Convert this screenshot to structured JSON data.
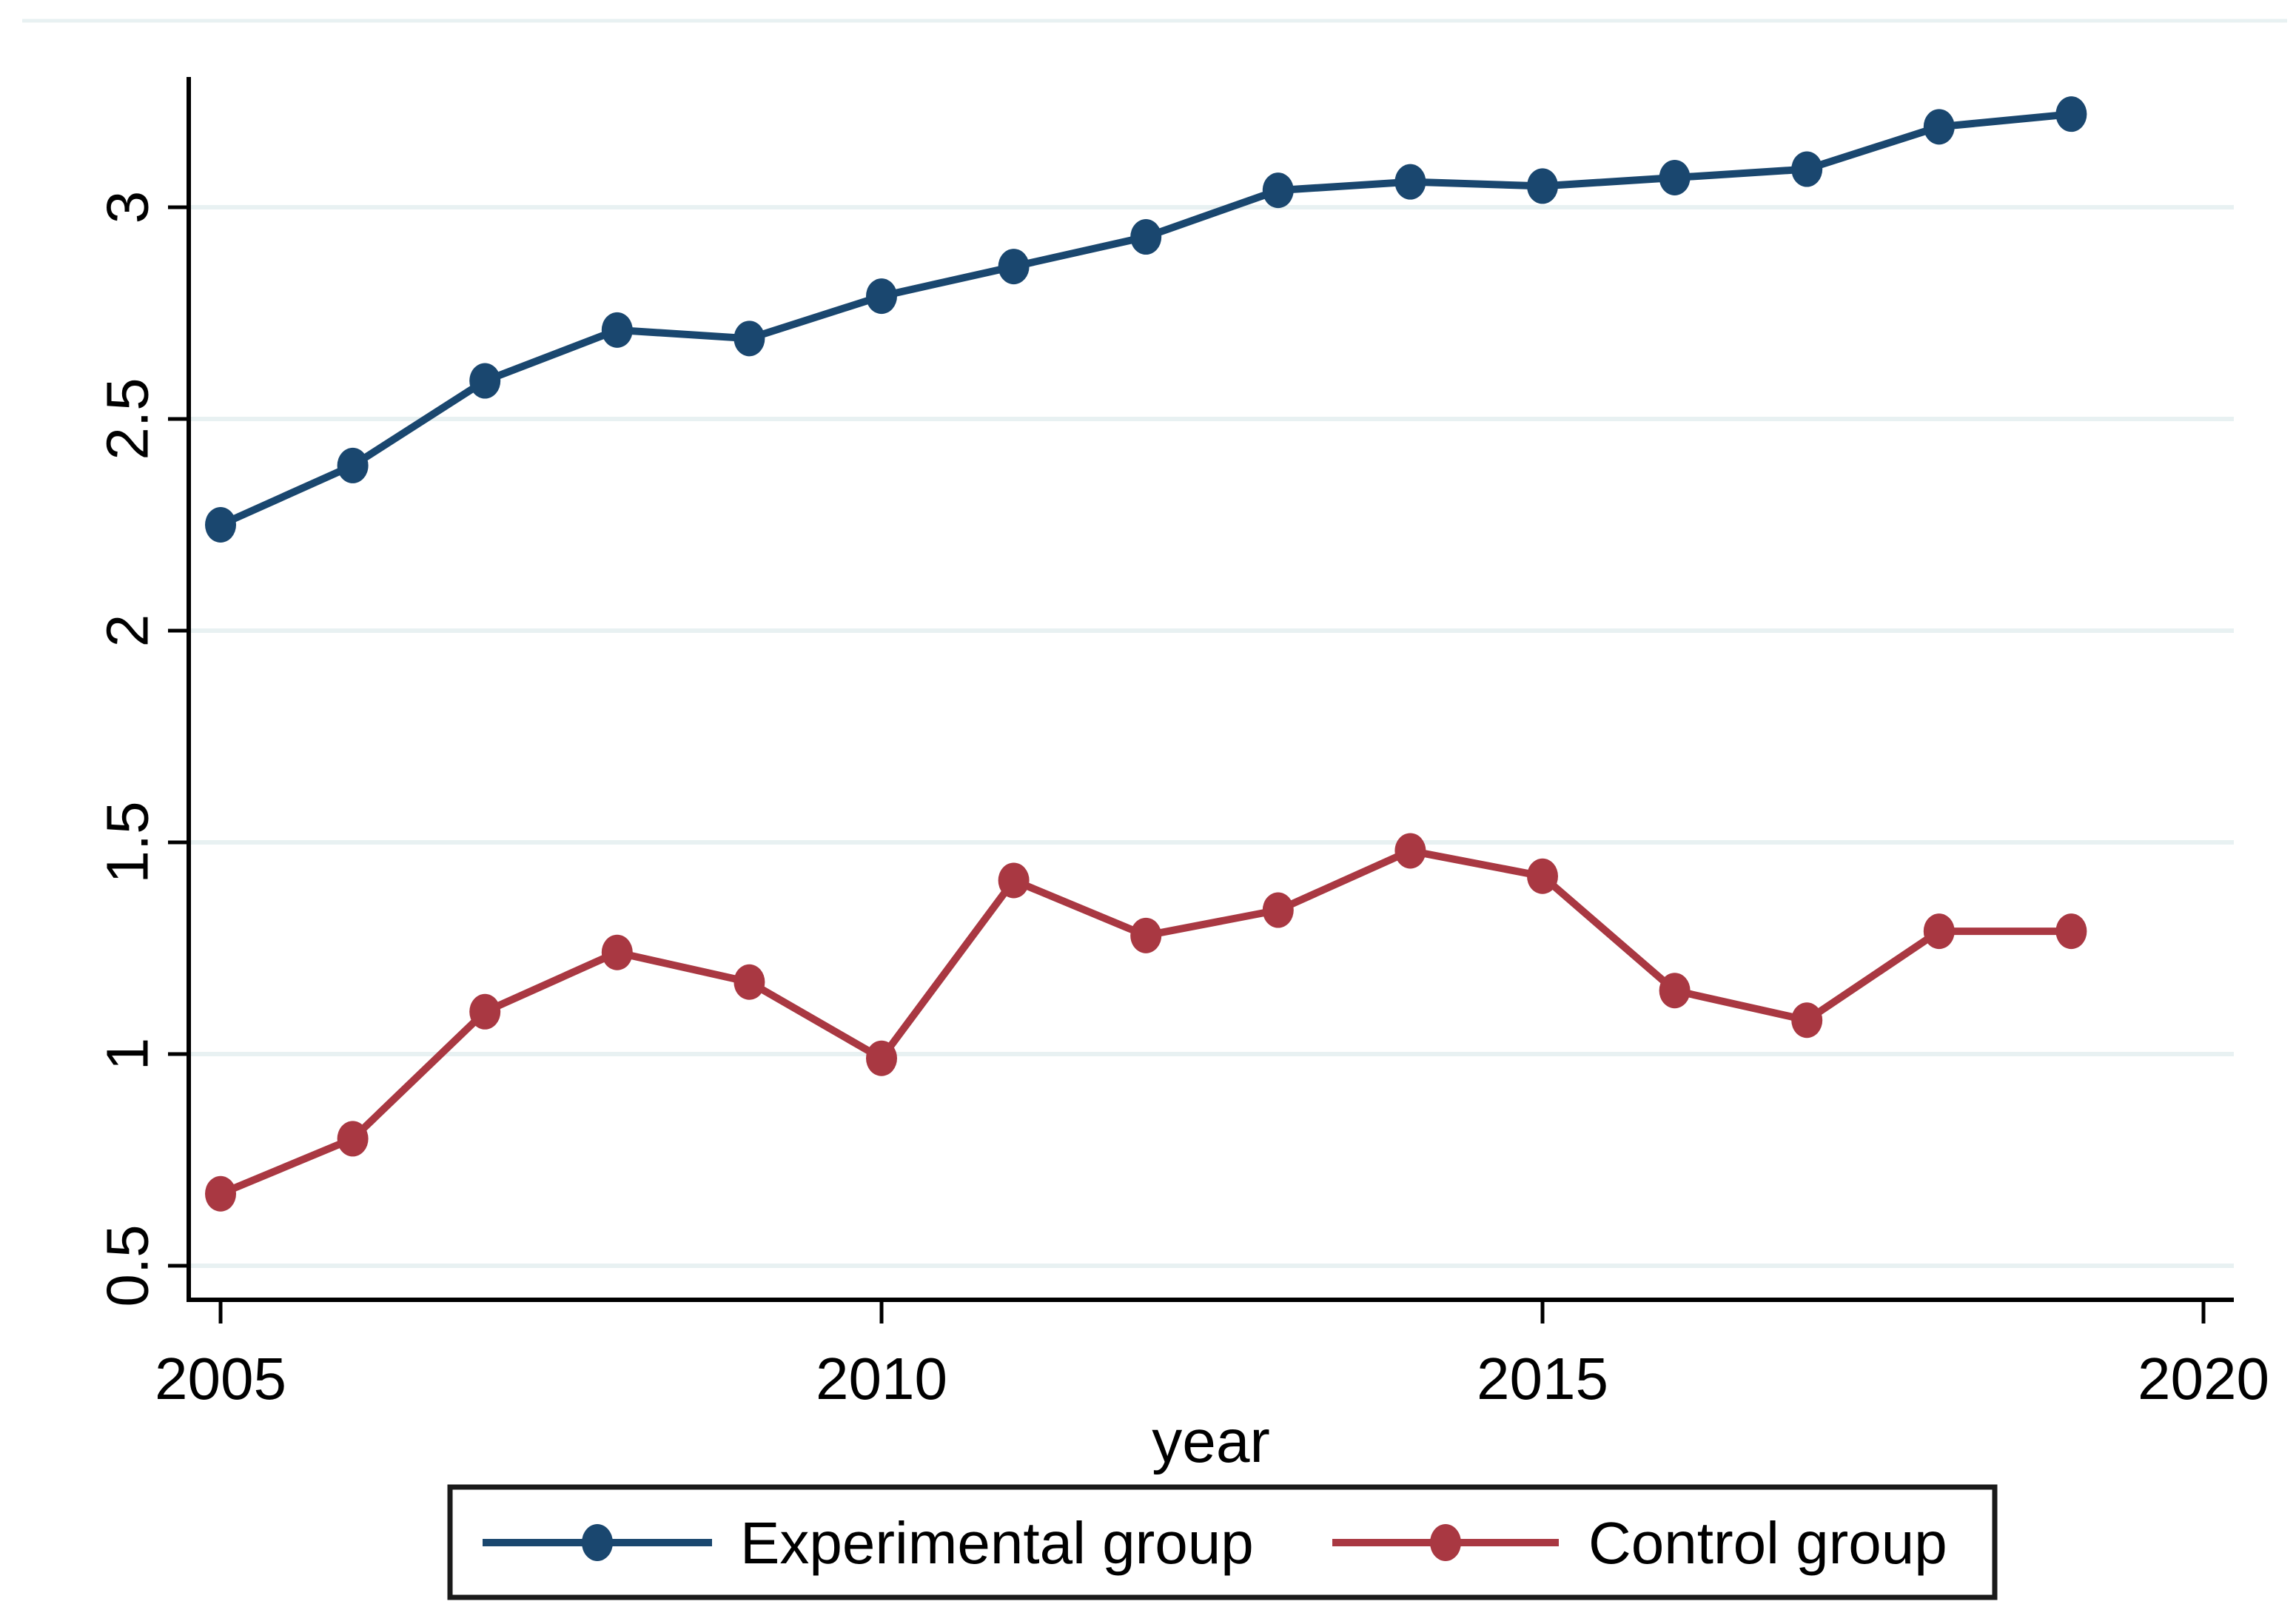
{
  "figure": {
    "title": "",
    "xlabel": "year",
    "ylabel": ""
  },
  "chart_data": {
    "type": "line",
    "title": "",
    "xlabel": "year",
    "ylabel": "",
    "x": [
      2005,
      2006,
      2007,
      2008,
      2009,
      2010,
      2011,
      2012,
      2013,
      2014,
      2015,
      2016,
      2017,
      2018,
      2019
    ],
    "series": [
      {
        "name": "Experimental group",
        "color": "#1a476f",
        "marker": "circle",
        "values": [
          2.25,
          2.39,
          2.59,
          2.71,
          2.69,
          2.79,
          2.86,
          2.93,
          3.04,
          3.06,
          3.05,
          3.07,
          3.09,
          3.19,
          3.22
        ]
      },
      {
        "name": "Control group",
        "color": "#a93842",
        "marker": "circle",
        "values": [
          0.67,
          0.8,
          1.1,
          1.24,
          1.17,
          0.99,
          1.41,
          1.28,
          1.34,
          1.48,
          1.42,
          1.15,
          1.08,
          1.29,
          1.29
        ]
      }
    ],
    "x_ticks": [
      2005,
      2010,
      2015,
      2020
    ],
    "y_ticks": [
      0.5,
      1,
      1.5,
      2,
      2.5,
      3
    ],
    "xlim": [
      2004.75,
      2020.25
    ],
    "ylim": [
      0.42,
      3.31
    ],
    "grid": "horizontal",
    "legend_position": "bottom",
    "legend_entries": [
      "Experimental group",
      "Control group"
    ],
    "colors": {
      "gridline": "#e8f1f2",
      "axis": "#000000",
      "background": "#ffffff",
      "legend_border": "#1a1a1a",
      "text": "#000000"
    }
  }
}
